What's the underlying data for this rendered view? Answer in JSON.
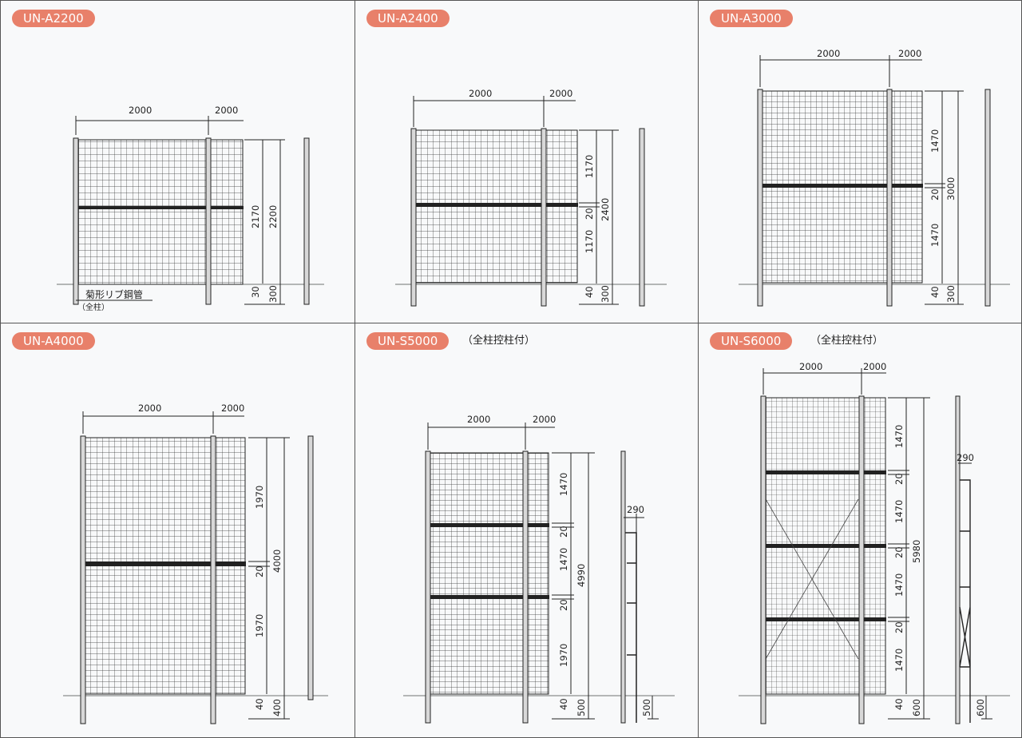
{
  "panels": [
    {
      "model": "UN-A2200",
      "note": "",
      "dims": {
        "span_main": "2000",
        "span_next": "2000",
        "heights": [
          "2170"
        ],
        "gaps": [],
        "total": "2200",
        "bottom_gap": "30",
        "embed": "300"
      },
      "label_main": "菊形リブ鋼管",
      "label_sub": "（全柱）"
    },
    {
      "model": "UN-A2400",
      "note": "",
      "dims": {
        "span_main": "2000",
        "span_next": "2000",
        "heights": [
          "1170",
          "1170"
        ],
        "gaps": [
          "20"
        ],
        "total": "2400",
        "bottom_gap": "40",
        "embed": "300"
      }
    },
    {
      "model": "UN-A3000",
      "note": "",
      "dims": {
        "span_main": "2000",
        "span_next": "2000",
        "heights": [
          "1470",
          "1470"
        ],
        "gaps": [
          "20"
        ],
        "total": "3000",
        "bottom_gap": "40",
        "embed": "300"
      }
    },
    {
      "model": "UN-A4000",
      "note": "",
      "dims": {
        "span_main": "2000",
        "span_next": "2000",
        "heights": [
          "1970",
          "1970"
        ],
        "gaps": [
          "20"
        ],
        "total": "4000",
        "bottom_gap": "40",
        "embed": "400"
      }
    },
    {
      "model": "UN-S5000",
      "note": "（全柱控柱付）",
      "dims": {
        "span_main": "2000",
        "span_next": "2000",
        "heights": [
          "1470",
          "1470",
          "1970"
        ],
        "gaps": [
          "20",
          "20"
        ],
        "total": "4990",
        "bottom_gap": "40",
        "embed": "500",
        "brace_width": "290",
        "brace_embed": "500"
      }
    },
    {
      "model": "UN-S6000",
      "note": "（全柱控柱付）",
      "dims": {
        "span_main": "2000",
        "span_next": "2000",
        "heights": [
          "1470",
          "1470",
          "1470",
          "1470"
        ],
        "gaps": [
          "20",
          "20",
          "20"
        ],
        "total": "5980",
        "bottom_gap": "40",
        "embed": "600",
        "brace_width": "290",
        "brace_embed": "600"
      }
    }
  ]
}
